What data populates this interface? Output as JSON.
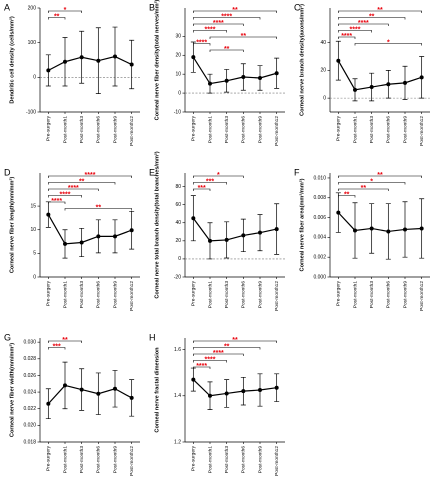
{
  "chart_data": [
    {
      "type": "line",
      "panel_label": "A",
      "ylabel": "Dendritic cell density (cells/mm²)",
      "categories": [
        "Pre-surgery",
        "Post-month1",
        "Post-month3",
        "Post-month6",
        "Post-month9",
        "Post-month12"
      ],
      "values": [
        20,
        45,
        58,
        48,
        60,
        37
      ],
      "errors": [
        45,
        70,
        75,
        95,
        85,
        70
      ],
      "ylim": [
        -100,
        200
      ],
      "yticks": [
        -100,
        0,
        100,
        200
      ],
      "zero_line": true,
      "color": "#000000",
      "bracket_color": "#000000",
      "star_color": "#e8000b",
      "brackets": [
        {
          "from": "Pre-surgery",
          "to": "Post-month3",
          "label": "*"
        },
        {
          "from": "Pre-surgery",
          "to": "Post-month1",
          "label": "**"
        }
      ]
    },
    {
      "type": "line",
      "panel_label": "B",
      "ylabel": "Corneal nerve fiber density(total nerves/mm²)",
      "categories": [
        "Pre-surgery",
        "Post-month1",
        "Post-month3",
        "Post-month6",
        "Post-month9",
        "Post-month12"
      ],
      "values": [
        19,
        5,
        6.5,
        8.5,
        8,
        10.5
      ],
      "errors": [
        8,
        5,
        6,
        7,
        6.5,
        8
      ],
      "ylim": [
        -10,
        45
      ],
      "yticks": [
        -10,
        0,
        10,
        20,
        30
      ],
      "zero_line": true,
      "color": "#000000",
      "bracket_color": "#000000",
      "star_color": "#e8000b",
      "brackets": [
        {
          "from": "Pre-surgery",
          "to": "Post-month12",
          "label": "**"
        },
        {
          "from": "Pre-surgery",
          "to": "Post-month9",
          "label": "****"
        },
        {
          "from": "Pre-surgery",
          "to": "Post-month6",
          "label": "****"
        },
        {
          "from": "Pre-surgery",
          "to": "Post-month3",
          "label": "****"
        },
        {
          "from": "Post-month1",
          "to": "Post-month12",
          "label": "**"
        },
        {
          "from": "Pre-surgery",
          "to": "Post-month1",
          "label": "****"
        },
        {
          "from": "Post-month1",
          "to": "Post-month6",
          "label": "**"
        }
      ]
    },
    {
      "type": "line",
      "panel_label": "C",
      "ylabel": "Corneal nerve branch density(axons/mm²)",
      "categories": [
        "Pre-surgery",
        "Post-month1",
        "Post-month3",
        "Post-month6",
        "Post-month9",
        "Post-month12"
      ],
      "values": [
        27,
        6,
        8,
        10,
        11,
        15
      ],
      "errors": [
        14,
        8,
        10,
        10,
        12,
        15
      ],
      "ylim": [
        -10,
        65
      ],
      "yticks": [
        0,
        20,
        40
      ],
      "zero_line": true,
      "color": "#000000",
      "bracket_color": "#000000",
      "star_color": "#e8000b",
      "brackets": [
        {
          "from": "Pre-surgery",
          "to": "Post-month12",
          "label": "**"
        },
        {
          "from": "Pre-surgery",
          "to": "Post-month9",
          "label": "**"
        },
        {
          "from": "Pre-surgery",
          "to": "Post-month6",
          "label": "****"
        },
        {
          "from": "Pre-surgery",
          "to": "Post-month3",
          "label": "****"
        },
        {
          "from": "Pre-surgery",
          "to": "Post-month1",
          "label": "****"
        },
        {
          "from": "Post-month1",
          "to": "Post-month12",
          "label": "*"
        }
      ]
    },
    {
      "type": "line",
      "panel_label": "D",
      "ylabel": "Corneal nerve fiber length(mm/mm²)",
      "categories": [
        "Pre-surgery",
        "Post-month1",
        "Post-month3",
        "Post-month6",
        "Post-month9",
        "Post-month12"
      ],
      "values": [
        13.2,
        7,
        7.3,
        8.6,
        8.6,
        9.9
      ],
      "errors": [
        2.7,
        3,
        3,
        3.5,
        3.5,
        4
      ],
      "ylim": [
        0,
        22
      ],
      "yticks": [
        0,
        5,
        10,
        15
      ],
      "zero_line": false,
      "color": "#000000",
      "bracket_color": "#000000",
      "star_color": "#e8000b",
      "brackets": [
        {
          "from": "Pre-surgery",
          "to": "Post-month12",
          "label": "****"
        },
        {
          "from": "Pre-surgery",
          "to": "Post-month9",
          "label": "**"
        },
        {
          "from": "Pre-surgery",
          "to": "Post-month6",
          "label": "****"
        },
        {
          "from": "Pre-surgery",
          "to": "Post-month3",
          "label": "****"
        },
        {
          "from": "Pre-surgery",
          "to": "Post-month1",
          "label": "****"
        },
        {
          "from": "Post-month1",
          "to": "Post-month12",
          "label": "**"
        }
      ]
    },
    {
      "type": "line",
      "panel_label": "E",
      "ylabel": "Corneal nerve total branch density(total branches/mm²)",
      "categories": [
        "Pre-surgery",
        "Post-month1",
        "Post-month3",
        "Post-month6",
        "Post-month9",
        "Post-month12"
      ],
      "values": [
        45,
        20,
        21,
        26,
        29,
        33
      ],
      "errors": [
        25,
        20,
        20,
        18,
        20,
        28
      ],
      "ylim": [
        -20,
        95
      ],
      "yticks": [
        -20,
        0,
        20,
        40,
        60,
        80
      ],
      "zero_line": true,
      "color": "#000000",
      "bracket_color": "#000000",
      "star_color": "#e8000b",
      "brackets": [
        {
          "from": "Pre-surgery",
          "to": "Post-month6",
          "label": "*"
        },
        {
          "from": "Pre-surgery",
          "to": "Post-month3",
          "label": "***"
        },
        {
          "from": "Pre-surgery",
          "to": "Post-month1",
          "label": "***"
        }
      ]
    },
    {
      "type": "line",
      "panel_label": "F",
      "ylabel": "Corneal nerve fiber area(mm²/mm²)",
      "categories": [
        "Pre-surgery",
        "Post-month1",
        "Post-month3",
        "Post-month6",
        "Post-month9",
        "Post-month12"
      ],
      "values": [
        0.0065,
        0.0047,
        0.0049,
        0.0046,
        0.0048,
        0.0049
      ],
      "errors": [
        0.002,
        0.0028,
        0.0025,
        0.0028,
        0.0028,
        0.003
      ],
      "ylim": [
        0,
        0.0105
      ],
      "yticks": [
        {
          "value": 0,
          "label": "0.000"
        },
        0.002,
        0.004,
        0.006,
        0.008,
        {
          "value": 0.01,
          "label": "0.010"
        }
      ],
      "zero_line": false,
      "color": "#000000",
      "bracket_color": "#000000",
      "star_color": "#e8000b",
      "brackets": [
        {
          "from": "Pre-surgery",
          "to": "Post-month12",
          "label": "**"
        },
        {
          "from": "Pre-surgery",
          "to": "Post-month9",
          "label": "*"
        },
        {
          "from": "Pre-surgery",
          "to": "Post-month6",
          "label": "**"
        },
        {
          "from": "Pre-surgery",
          "to": "Post-month1",
          "label": "**"
        }
      ]
    },
    {
      "type": "line",
      "panel_label": "G",
      "ylabel": "Corneal nerve fiber width(mm/mm²)",
      "categories": [
        "Pre-surgery",
        "Post-month1",
        "Post-month3",
        "Post-month6",
        "Post-month9",
        "Post-month12"
      ],
      "values": [
        0.0226,
        0.0248,
        0.0243,
        0.0238,
        0.0244,
        0.0233
      ],
      "errors": [
        0.0018,
        0.0028,
        0.0025,
        0.0025,
        0.0022,
        0.0022
      ],
      "ylim": [
        0.018,
        0.0305
      ],
      "yticks": [
        0.018,
        {
          "value": 0.02,
          "label": "0.020"
        },
        0.022,
        0.024,
        0.026,
        0.028,
        {
          "value": 0.03,
          "label": "0.030"
        }
      ],
      "zero_line": false,
      "color": "#000000",
      "bracket_color": "#000000",
      "star_color": "#e8000b",
      "brackets": [
        {
          "from": "Pre-surgery",
          "to": "Post-month3",
          "label": "**"
        },
        {
          "from": "Pre-surgery",
          "to": "Post-month1",
          "label": "***"
        }
      ]
    },
    {
      "type": "line",
      "panel_label": "H",
      "ylabel": "Corneal nerve fractal dimension",
      "categories": [
        "Pre-surgery",
        "Post-month1",
        "Post-month3",
        "Post-month6",
        "Post-month9",
        "Post-month12"
      ],
      "values": [
        1.47,
        1.4,
        1.41,
        1.42,
        1.425,
        1.435
      ],
      "errors": [
        0.05,
        0.06,
        0.06,
        0.06,
        0.07,
        0.06
      ],
      "ylim": [
        1.2,
        1.65
      ],
      "yticks": [
        1.2,
        1.4,
        1.6
      ],
      "zero_line": false,
      "color": "#000000",
      "bracket_color": "#000000",
      "star_color": "#e8000b",
      "brackets": [
        {
          "from": "Pre-surgery",
          "to": "Post-month12",
          "label": "**"
        },
        {
          "from": "Pre-surgery",
          "to": "Post-month9",
          "label": "**"
        },
        {
          "from": "Pre-surgery",
          "to": "Post-month6",
          "label": "****"
        },
        {
          "from": "Pre-surgery",
          "to": "Post-month3",
          "label": "****"
        },
        {
          "from": "Pre-surgery",
          "to": "Post-month1",
          "label": "****"
        }
      ]
    }
  ]
}
